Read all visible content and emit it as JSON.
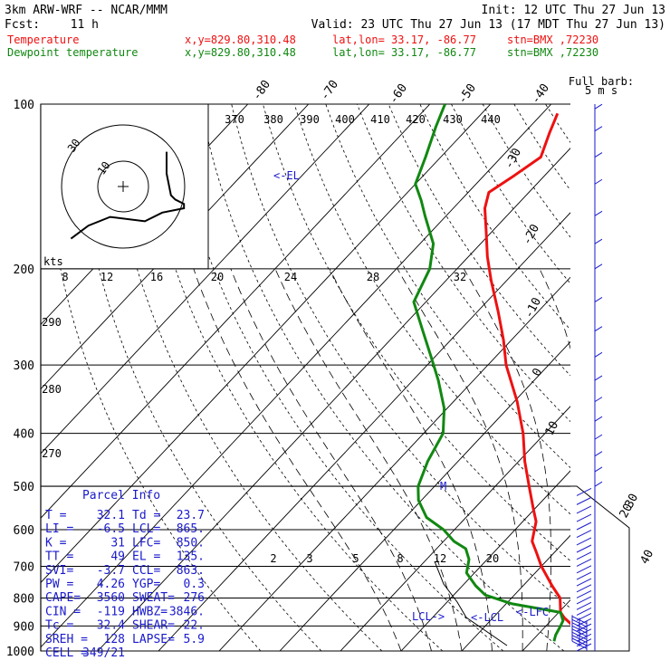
{
  "header": {
    "model": "3km ARW-WRF -- NCAR/MMM",
    "init": "Init: 12 UTC Thu 27 Jun 13",
    "fcst_label": "Fcst:",
    "fcst_value": "11 h",
    "valid": "Valid: 23 UTC Thu 27 Jun 13 (17 MDT Thu 27 Jun 13)",
    "temp_line": {
      "name": "Temperature",
      "xy": "x,y=829.80,310.48",
      "latlon": "lat,lon= 33.17, -86.77",
      "stn": "stn=BMX ,72230"
    },
    "dew_line": {
      "name": "Dewpoint temperature",
      "xy": "x,y=829.80,310.48",
      "latlon": "lat,lon= 33.17, -86.77",
      "stn": "stn=BMX ,72230"
    }
  },
  "colors": {
    "temperature": "#ee1111",
    "dewpoint": "#118811",
    "ink": "#000000",
    "wind": "#1a1acc",
    "axis": "#000000"
  },
  "chart_data": {
    "type": "line",
    "title": "",
    "subtitle": "",
    "x_axis": {
      "kind": "skew-T temperature",
      "unit": "C",
      "ticks_isotherm": [
        -40,
        -30,
        -20,
        -10,
        0,
        10,
        20,
        30,
        40
      ],
      "ticks_top": [
        -80,
        -70,
        -60,
        -50,
        -40
      ]
    },
    "y_axis": {
      "kind": "log pressure",
      "unit": "hPa",
      "ticks": [
        100,
        200,
        300,
        400,
        500,
        600,
        700,
        800,
        900,
        1000
      ],
      "ylim": [
        1000,
        100
      ]
    },
    "series": [
      {
        "name": "Temperature",
        "color": "#ee1111",
        "points": [
          [
            960,
            32.1
          ],
          [
            935,
            28.8
          ],
          [
            900,
            24.5
          ],
          [
            870,
            21.8
          ],
          [
            850,
            20.3
          ],
          [
            800,
            18.0
          ],
          [
            760,
            14.8
          ],
          [
            700,
            10.0
          ],
          [
            660,
            7.0
          ],
          [
            630,
            4.6
          ],
          [
            580,
            2.2
          ],
          [
            550,
            -0.2
          ],
          [
            500,
            -4.4
          ],
          [
            450,
            -9.0
          ],
          [
            400,
            -13.6
          ],
          [
            350,
            -19.5
          ],
          [
            300,
            -27.0
          ],
          [
            270,
            -31.3
          ],
          [
            240,
            -36.5
          ],
          [
            210,
            -42.6
          ],
          [
            190,
            -46.9
          ],
          [
            170,
            -51.2
          ],
          [
            155,
            -54.8
          ],
          [
            145,
            -56.6
          ],
          [
            135,
            -55.0
          ],
          [
            125,
            -53.5
          ],
          [
            113,
            -55.8
          ],
          [
            104,
            -57.5
          ]
        ]
      },
      {
        "name": "Dewpoint temperature",
        "color": "#118811",
        "points": [
          [
            960,
            23.7
          ],
          [
            935,
            23.0
          ],
          [
            900,
            22.4
          ],
          [
            880,
            22.0
          ],
          [
            850,
            20.3
          ],
          [
            820,
            11.0
          ],
          [
            790,
            5.2
          ],
          [
            760,
            2.2
          ],
          [
            720,
            -1.3
          ],
          [
            680,
            -3.0
          ],
          [
            650,
            -5.2
          ],
          [
            630,
            -8.3
          ],
          [
            600,
            -11.8
          ],
          [
            570,
            -16.5
          ],
          [
            530,
            -20.5
          ],
          [
            500,
            -22.7
          ],
          [
            450,
            -25.0
          ],
          [
            400,
            -26.8
          ],
          [
            360,
            -30.5
          ],
          [
            320,
            -35.8
          ],
          [
            290,
            -40.6
          ],
          [
            260,
            -46.0
          ],
          [
            230,
            -52.0
          ],
          [
            200,
            -54.5
          ],
          [
            180,
            -57.8
          ],
          [
            160,
            -63.5
          ],
          [
            150,
            -66.5
          ],
          [
            140,
            -70.0
          ],
          [
            125,
            -72.5
          ],
          [
            110,
            -75.5
          ],
          [
            100,
            -77.5
          ]
        ]
      }
    ],
    "dry_adiabats_K_labels": [
      "370",
      "380",
      "390",
      "400",
      "410",
      "420",
      "430",
      "440",
      "290",
      "280",
      "270"
    ],
    "mixing_ratio_labels": [
      "8",
      "12",
      "16",
      "20",
      "24",
      "28",
      "32",
      "2",
      "3",
      "5",
      "8",
      "12",
      "20"
    ],
    "mixing_ratio_values": [
      8,
      12,
      16,
      20,
      24,
      28,
      32,
      2,
      3,
      5,
      8,
      12,
      20
    ],
    "annotations": [
      "<-EL",
      "LCL",
      "<-LFC",
      "LCL->",
      "<-LCL",
      "M"
    ],
    "hodograph": {
      "label": "kts",
      "ring_labels": [
        "30",
        "10"
      ],
      "trace_uv_kts": [
        [
          -12,
          -12
        ],
        [
          -8,
          -9
        ],
        [
          -3,
          -7
        ],
        [
          5,
          -8
        ],
        [
          9,
          -6
        ],
        [
          14,
          -5
        ],
        [
          14,
          -4
        ],
        [
          12,
          -3
        ],
        [
          11,
          -2
        ],
        [
          10,
          3
        ],
        [
          10,
          8
        ]
      ]
    },
    "wind_barbs": [
      {
        "p": 1000,
        "kts": 10,
        "dir": 120
      },
      {
        "p": 980,
        "kts": 10,
        "dir": 120
      },
      {
        "p": 960,
        "kts": 10,
        "dir": 115
      },
      {
        "p": 940,
        "kts": 10,
        "dir": 110
      },
      {
        "p": 920,
        "kts": 10,
        "dir": 110
      },
      {
        "p": 900,
        "kts": 10,
        "dir": 105
      },
      {
        "p": 880,
        "kts": 10,
        "dir": 100
      },
      {
        "p": 860,
        "kts": 10,
        "dir": 100
      },
      {
        "p": 840,
        "kts": 10,
        "dir": 95
      },
      {
        "p": 820,
        "kts": 5,
        "dir": 90
      },
      {
        "p": 800,
        "kts": 5,
        "dir": 90
      },
      {
        "p": 780,
        "kts": 5,
        "dir": 85
      },
      {
        "p": 760,
        "kts": 5,
        "dir": 80
      },
      {
        "p": 740,
        "kts": 10,
        "dir": 80
      },
      {
        "p": 720,
        "kts": 10,
        "dir": 75
      },
      {
        "p": 700,
        "kts": 10,
        "dir": 70
      },
      {
        "p": 680,
        "kts": 10,
        "dir": 65
      },
      {
        "p": 660,
        "kts": 10,
        "dir": 60
      },
      {
        "p": 640,
        "kts": 10,
        "dir": 60
      },
      {
        "p": 620,
        "kts": 10,
        "dir": 55
      },
      {
        "p": 600,
        "kts": 10,
        "dir": 50
      },
      {
        "p": 580,
        "kts": 10,
        "dir": 45
      },
      {
        "p": 560,
        "kts": 10,
        "dir": 40
      },
      {
        "p": 540,
        "kts": 10,
        "dir": 35
      },
      {
        "p": 520,
        "kts": 10,
        "dir": 30
      },
      {
        "p": 500,
        "kts": 10,
        "dir": 30
      },
      {
        "p": 470,
        "kts": 10,
        "dir": 25
      },
      {
        "p": 440,
        "kts": 10,
        "dir": 20
      },
      {
        "p": 410,
        "kts": 10,
        "dir": 20
      },
      {
        "p": 380,
        "kts": 10,
        "dir": 15
      },
      {
        "p": 350,
        "kts": 10,
        "dir": 15
      },
      {
        "p": 320,
        "kts": 10,
        "dir": 10
      },
      {
        "p": 290,
        "kts": 10,
        "dir": 10
      },
      {
        "p": 260,
        "kts": 10,
        "dir": 5
      },
      {
        "p": 230,
        "kts": 10,
        "dir": 5
      },
      {
        "p": 200,
        "kts": 10,
        "dir": 5
      },
      {
        "p": 180,
        "kts": 10,
        "dir": 10
      },
      {
        "p": 160,
        "kts": 10,
        "dir": 10
      },
      {
        "p": 140,
        "kts": 10,
        "dir": 15
      },
      {
        "p": 125,
        "kts": 10,
        "dir": 20
      },
      {
        "p": 112,
        "kts": 10,
        "dir": 25
      },
      {
        "p": 102,
        "kts": 10,
        "dir": 30
      }
    ],
    "barb_key": {
      "title": "Full barb:",
      "value": "5 m s"
    }
  },
  "parcel_info": {
    "title": "Parcel Info",
    "rows": [
      [
        "T  =",
        "32.1",
        "Td =",
        "23.7"
      ],
      [
        "LI =",
        "-6.5",
        "LCL=",
        "865."
      ],
      [
        "K  =",
        "31",
        "LFC=",
        "850."
      ],
      [
        "TT =",
        "49",
        "EL =",
        "135."
      ],
      [
        "SVI=",
        "-3.7",
        "CCL=",
        "863."
      ],
      [
        "PW =",
        "4.26",
        "YGP=",
        "0.3"
      ],
      [
        "CAPE=",
        "3560",
        "SWEAT=",
        "276"
      ],
      [
        "CIN =",
        "-119",
        "HWBZ=",
        "3846."
      ],
      [
        "Tc =",
        "32.4",
        "SHEAR=",
        "22."
      ],
      [
        "SREH =",
        "128",
        "LAPSE=",
        "5.9"
      ],
      [
        "CELL =",
        "349/21",
        "",
        ""
      ]
    ]
  }
}
